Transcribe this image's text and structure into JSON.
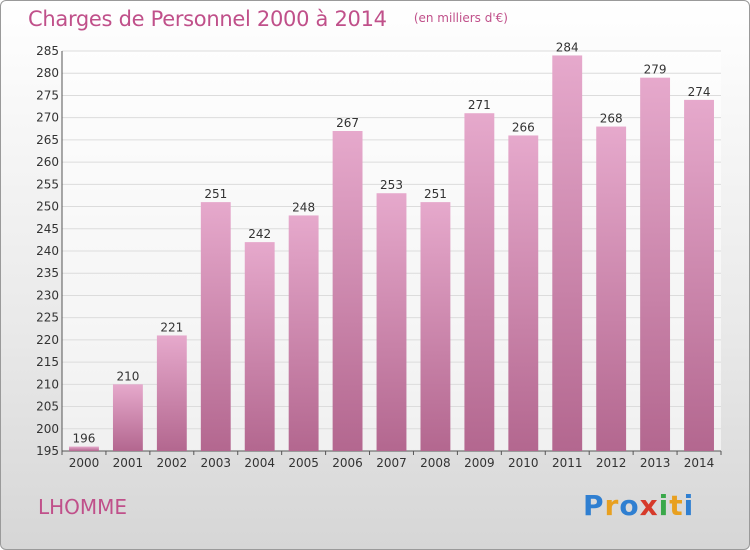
{
  "chart_data": {
    "type": "bar",
    "title": "Charges de Personnel 2000 à 2014",
    "subtitle": "(en milliers d'€)",
    "xlabel": "",
    "ylabel": "",
    "categories": [
      "2000",
      "2001",
      "2002",
      "2003",
      "2004",
      "2005",
      "2006",
      "2007",
      "2008",
      "2009",
      "2010",
      "2011",
      "2012",
      "2013",
      "2014"
    ],
    "values": [
      196,
      210,
      221,
      251,
      242,
      248,
      267,
      253,
      251,
      271,
      266,
      284,
      268,
      279,
      274
    ],
    "ylim": [
      195,
      285
    ],
    "yticks": [
      195,
      200,
      205,
      210,
      215,
      220,
      225,
      230,
      235,
      240,
      245,
      250,
      255,
      260,
      265,
      270,
      275,
      280,
      285
    ],
    "grid": true,
    "bar_color": "#d88fb8"
  },
  "commune": "LHOMME",
  "logo": {
    "letters": [
      {
        "ch": "P",
        "color": "#2f7fd1"
      },
      {
        "ch": "r",
        "color": "#e8a020"
      },
      {
        "ch": "o",
        "color": "#2f7fd1"
      },
      {
        "ch": "x",
        "color": "#d63a2a"
      },
      {
        "ch": "i",
        "color": "#3aa84a"
      },
      {
        "ch": "t",
        "color": "#e8a020"
      },
      {
        "ch": "i",
        "color": "#2f7fd1"
      }
    ]
  }
}
